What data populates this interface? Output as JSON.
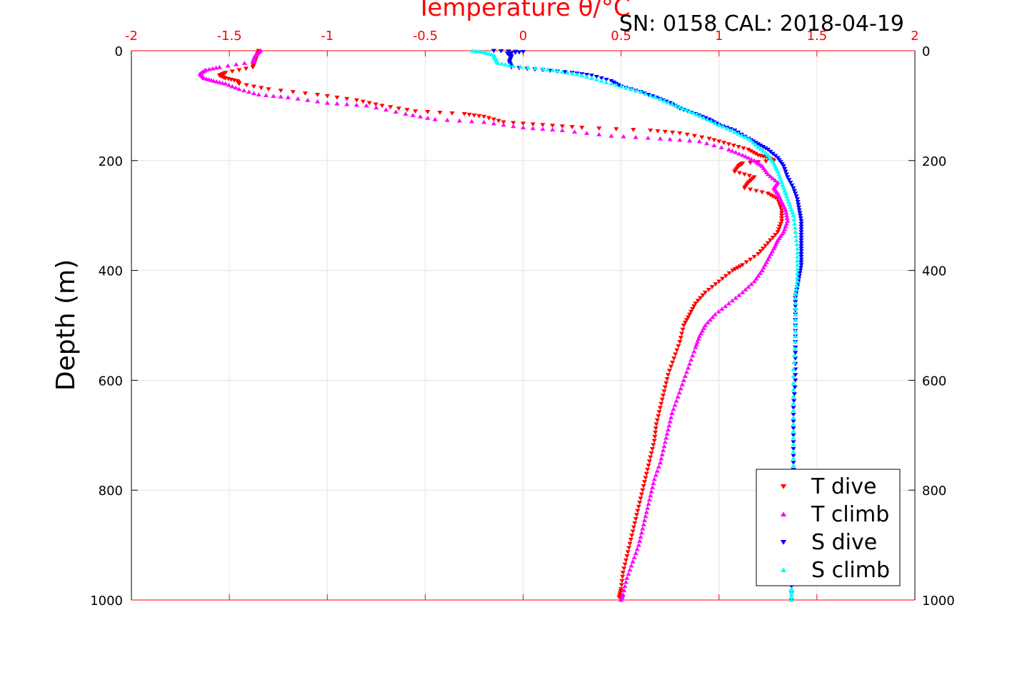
{
  "header": {
    "serial_text": "SN: 0158  CAL: 2018-04-19"
  },
  "chart_data": {
    "type": "scatter",
    "title": "Temperature θ/°C",
    "ylabel": "Depth (m)",
    "xlim": [
      -2,
      2
    ],
    "ylim": [
      0,
      1000
    ],
    "y_reversed": true,
    "grid": true,
    "legend_position": "bottom-right",
    "colors": {
      "temperature_axis": "#ff0000",
      "t_dive": "#ff0000",
      "t_climb": "#ff00ff",
      "s_dive": "#0000ff",
      "s_climb": "#00ffff"
    },
    "x_ticks": [
      "-2",
      "-1.5",
      "-1",
      "-0.5",
      "0",
      "0.5",
      "1",
      "1.5",
      "2"
    ],
    "y_ticks": [
      "0",
      "200",
      "400",
      "600",
      "800",
      "1000"
    ],
    "series": [
      {
        "name": "T dive",
        "marker": "triangle-down",
        "color": "#ff0000",
        "points": [
          [
            -1.35,
            0
          ],
          [
            -1.36,
            10
          ],
          [
            -1.37,
            20
          ],
          [
            -1.38,
            30
          ],
          [
            -1.52,
            40
          ],
          [
            -1.55,
            45
          ],
          [
            -1.52,
            50
          ],
          [
            -1.46,
            55
          ],
          [
            -1.45,
            60
          ],
          [
            -1.3,
            70
          ],
          [
            -1.05,
            80
          ],
          [
            -0.85,
            90
          ],
          [
            -0.72,
            100
          ],
          [
            -0.55,
            110
          ],
          [
            -0.3,
            115
          ],
          [
            -0.2,
            120
          ],
          [
            -0.1,
            130
          ],
          [
            0.1,
            135
          ],
          [
            0.3,
            140
          ],
          [
            0.65,
            145
          ],
          [
            0.8,
            150
          ],
          [
            0.95,
            160
          ],
          [
            1.05,
            170
          ],
          [
            1.15,
            180
          ],
          [
            1.2,
            190
          ],
          [
            1.25,
            195
          ],
          [
            1.28,
            200
          ],
          [
            1.12,
            205
          ],
          [
            1.1,
            210
          ],
          [
            1.08,
            220
          ],
          [
            1.18,
            230
          ],
          [
            1.15,
            240
          ],
          [
            1.13,
            250
          ],
          [
            1.25,
            260
          ],
          [
            1.3,
            270
          ],
          [
            1.32,
            290
          ],
          [
            1.32,
            310
          ],
          [
            1.3,
            330
          ],
          [
            1.25,
            350
          ],
          [
            1.2,
            370
          ],
          [
            1.12,
            390
          ],
          [
            1.07,
            400
          ],
          [
            1.0,
            420
          ],
          [
            0.93,
            440
          ],
          [
            0.88,
            460
          ],
          [
            0.85,
            480
          ],
          [
            0.82,
            500
          ],
          [
            0.8,
            530
          ],
          [
            0.77,
            560
          ],
          [
            0.74,
            590
          ],
          [
            0.72,
            620
          ],
          [
            0.7,
            650
          ],
          [
            0.68,
            680
          ],
          [
            0.67,
            710
          ],
          [
            0.65,
            740
          ],
          [
            0.63,
            770
          ],
          [
            0.61,
            800
          ],
          [
            0.59,
            830
          ],
          [
            0.57,
            860
          ],
          [
            0.55,
            890
          ],
          [
            0.53,
            920
          ],
          [
            0.51,
            950
          ],
          [
            0.5,
            980
          ],
          [
            0.49,
            995
          ]
        ]
      },
      {
        "name": "T climb",
        "marker": "triangle-up",
        "color": "#ff00ff",
        "points": [
          [
            -1.34,
            0
          ],
          [
            -1.37,
            10
          ],
          [
            -1.38,
            20
          ],
          [
            -1.55,
            30
          ],
          [
            -1.62,
            35
          ],
          [
            -1.65,
            42
          ],
          [
            -1.63,
            50
          ],
          [
            -1.58,
            55
          ],
          [
            -1.52,
            60
          ],
          [
            -1.45,
            70
          ],
          [
            -1.35,
            80
          ],
          [
            -1.2,
            85
          ],
          [
            -1.0,
            95
          ],
          [
            -0.8,
            100
          ],
          [
            -0.6,
            115
          ],
          [
            -0.45,
            125
          ],
          [
            -0.2,
            130
          ],
          [
            0.0,
            140
          ],
          [
            0.2,
            145
          ],
          [
            0.45,
            155
          ],
          [
            0.7,
            160
          ],
          [
            0.9,
            165
          ],
          [
            1.05,
            180
          ],
          [
            1.12,
            190
          ],
          [
            1.18,
            200
          ],
          [
            1.22,
            210
          ],
          [
            1.25,
            225
          ],
          [
            1.3,
            240
          ],
          [
            1.28,
            250
          ],
          [
            1.3,
            260
          ],
          [
            1.32,
            275
          ],
          [
            1.34,
            290
          ],
          [
            1.35,
            310
          ],
          [
            1.33,
            330
          ],
          [
            1.3,
            345
          ],
          [
            1.28,
            360
          ],
          [
            1.25,
            380
          ],
          [
            1.22,
            400
          ],
          [
            1.18,
            420
          ],
          [
            1.12,
            440
          ],
          [
            1.05,
            460
          ],
          [
            0.98,
            480
          ],
          [
            0.93,
            500
          ],
          [
            0.9,
            520
          ],
          [
            0.88,
            540
          ],
          [
            0.85,
            570
          ],
          [
            0.82,
            600
          ],
          [
            0.79,
            630
          ],
          [
            0.76,
            660
          ],
          [
            0.74,
            690
          ],
          [
            0.72,
            720
          ],
          [
            0.7,
            750
          ],
          [
            0.67,
            780
          ],
          [
            0.65,
            810
          ],
          [
            0.63,
            840
          ],
          [
            0.61,
            870
          ],
          [
            0.59,
            900
          ],
          [
            0.56,
            930
          ],
          [
            0.53,
            960
          ],
          [
            0.51,
            990
          ],
          [
            0.5,
            1000
          ]
        ]
      },
      {
        "name": "S dive",
        "marker": "triangle-down",
        "color": "#0000ff",
        "points": [
          [
            -0.15,
            0
          ],
          [
            0.0,
            2
          ],
          [
            -0.08,
            5
          ],
          [
            -0.06,
            10
          ],
          [
            -0.07,
            20
          ],
          [
            -0.06,
            30
          ],
          [
            0.1,
            35
          ],
          [
            0.25,
            40
          ],
          [
            0.35,
            45
          ],
          [
            0.45,
            55
          ],
          [
            0.5,
            65
          ],
          [
            0.6,
            75
          ],
          [
            0.68,
            85
          ],
          [
            0.75,
            95
          ],
          [
            0.8,
            105
          ],
          [
            0.88,
            115
          ],
          [
            0.95,
            125
          ],
          [
            1.0,
            135
          ],
          [
            1.08,
            145
          ],
          [
            1.15,
            160
          ],
          [
            1.2,
            170
          ],
          [
            1.25,
            180
          ],
          [
            1.3,
            195
          ],
          [
            1.33,
            210
          ],
          [
            1.35,
            230
          ],
          [
            1.38,
            250
          ],
          [
            1.4,
            270
          ],
          [
            1.41,
            290
          ],
          [
            1.42,
            310
          ],
          [
            1.42,
            330
          ],
          [
            1.42,
            350
          ],
          [
            1.42,
            370
          ],
          [
            1.42,
            390
          ],
          [
            1.41,
            410
          ],
          [
            1.4,
            430
          ],
          [
            1.39,
            450
          ],
          [
            1.39,
            480
          ],
          [
            1.39,
            520
          ],
          [
            1.39,
            560
          ],
          [
            1.39,
            600
          ],
          [
            1.38,
            650
          ],
          [
            1.38,
            700
          ],
          [
            1.38,
            750
          ],
          [
            1.38,
            800
          ],
          [
            1.37,
            850
          ],
          [
            1.37,
            900
          ],
          [
            1.37,
            950
          ],
          [
            1.37,
            1000
          ]
        ]
      },
      {
        "name": "S climb",
        "marker": "triangle-up",
        "color": "#00ffff",
        "points": [
          [
            -0.26,
            0
          ],
          [
            -0.2,
            3
          ],
          [
            -0.15,
            8
          ],
          [
            -0.14,
            15
          ],
          [
            -0.13,
            22
          ],
          [
            -0.05,
            28
          ],
          [
            0.1,
            33
          ],
          [
            0.2,
            38
          ],
          [
            0.3,
            45
          ],
          [
            0.4,
            55
          ],
          [
            0.5,
            65
          ],
          [
            0.6,
            75
          ],
          [
            0.7,
            88
          ],
          [
            0.78,
            100
          ],
          [
            0.85,
            110
          ],
          [
            0.92,
            122
          ],
          [
            1.0,
            135
          ],
          [
            1.08,
            148
          ],
          [
            1.15,
            160
          ],
          [
            1.2,
            175
          ],
          [
            1.25,
            190
          ],
          [
            1.28,
            205
          ],
          [
            1.3,
            220
          ],
          [
            1.32,
            240
          ],
          [
            1.34,
            260
          ],
          [
            1.36,
            280
          ],
          [
            1.38,
            300
          ],
          [
            1.39,
            330
          ],
          [
            1.4,
            360
          ],
          [
            1.4,
            390
          ],
          [
            1.4,
            420
          ],
          [
            1.39,
            450
          ],
          [
            1.39,
            490
          ],
          [
            1.39,
            530
          ],
          [
            1.38,
            580
          ],
          [
            1.38,
            630
          ],
          [
            1.38,
            680
          ],
          [
            1.38,
            730
          ],
          [
            1.38,
            780
          ],
          [
            1.37,
            830
          ],
          [
            1.37,
            880
          ],
          [
            1.37,
            930
          ],
          [
            1.37,
            980
          ],
          [
            1.37,
            1000
          ]
        ]
      }
    ]
  }
}
